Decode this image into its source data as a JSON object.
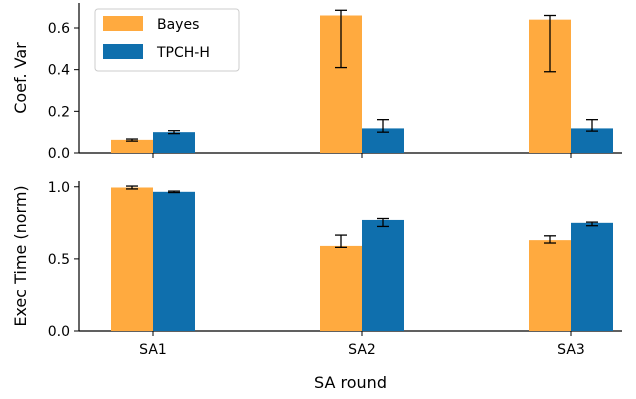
{
  "chart_data": [
    {
      "type": "bar",
      "categories": [
        "SA1",
        "SA2",
        "SA3"
      ],
      "xlabel": "",
      "ylabel": "Coef. Var",
      "ylim": [
        0,
        0.72
      ],
      "yticks": [
        "0.0",
        "0.2",
        "0.4",
        "0.6"
      ],
      "grid": false,
      "legend": "top-left",
      "series": [
        {
          "name": "Bayes",
          "color": "#ffaa3f",
          "values": [
            0.063,
            0.66,
            0.64
          ],
          "err_low": [
            0.057,
            0.41,
            0.39
          ],
          "err_high": [
            0.067,
            0.685,
            0.66
          ]
        },
        {
          "name": "TPCH-H",
          "color": "#0f6fad",
          "values": [
            0.1,
            0.118,
            0.118
          ],
          "err_low": [
            0.093,
            0.1,
            0.105
          ],
          "err_high": [
            0.107,
            0.16,
            0.16
          ]
        }
      ]
    },
    {
      "type": "bar",
      "categories": [
        "SA1",
        "SA2",
        "SA3"
      ],
      "xlabel": "SA round",
      "ylabel": "Exec Time (norm)",
      "ylim": [
        0,
        1.04
      ],
      "yticks": [
        "0.0",
        "0.5",
        "1.0"
      ],
      "grid": false,
      "series": [
        {
          "name": "Bayes",
          "color": "#ffaa3f",
          "values": [
            0.995,
            0.59,
            0.63
          ],
          "err_low": [
            0.985,
            0.58,
            0.61
          ],
          "err_high": [
            1.005,
            0.665,
            0.66
          ]
        },
        {
          "name": "TPCH-H",
          "color": "#0f6fad",
          "values": [
            0.965,
            0.77,
            0.75
          ],
          "err_low": [
            0.96,
            0.725,
            0.73
          ],
          "err_high": [
            0.97,
            0.78,
            0.755
          ]
        }
      ]
    }
  ]
}
